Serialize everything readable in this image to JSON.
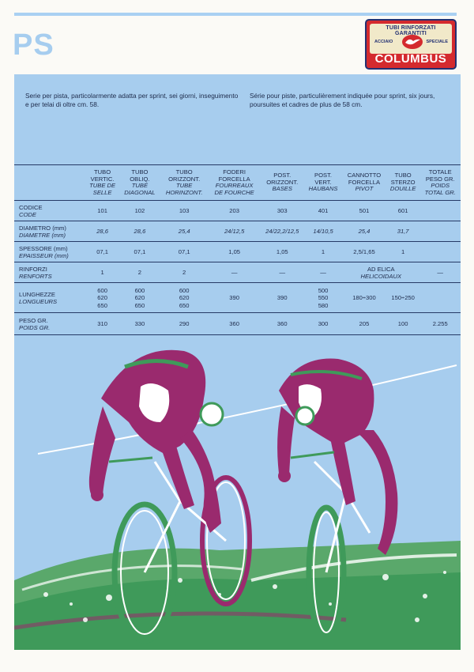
{
  "series_title": "PS",
  "logo": {
    "line1": "TUBI RINFORZATI GARANTITI",
    "left": "ACCIAIO",
    "right": "SPECIALE",
    "brand": "COLUMBUS"
  },
  "description": {
    "it": "Serie per pista, particolarmente adatta per sprint, sei giorni, inseguimento e per telai di oltre cm. 58.",
    "fr": "Série pour piste, particulièrement indiquée pour sprint, six jours, poursuites et cadres de plus de 58 cm."
  },
  "columns": [
    {
      "it": [
        "TUBO",
        "VERTIC."
      ],
      "fr": [
        "TUBE DE",
        "SELLE"
      ]
    },
    {
      "it": [
        "TUBO",
        "OBLIQ."
      ],
      "fr": [
        "TUBE",
        "DIAGONAL"
      ]
    },
    {
      "it": [
        "TUBO",
        "ORIZZONT."
      ],
      "fr": [
        "TUBE",
        "HORINZONT."
      ]
    },
    {
      "it": [
        "FODERI",
        "FORCELLA"
      ],
      "fr": [
        "FOURREAUX",
        "DE FOURCHE"
      ]
    },
    {
      "it": [
        "POST.",
        "ORIZZONT."
      ],
      "fr": [
        "BASES"
      ]
    },
    {
      "it": [
        "POST.",
        "VERT."
      ],
      "fr": [
        "HAUBANS"
      ]
    },
    {
      "it": [
        "CANNOTTO",
        "FORCELLA"
      ],
      "fr": [
        "PIVOT"
      ]
    },
    {
      "it": [
        "TUBO",
        "STERZO"
      ],
      "fr": [
        "DOUILLE"
      ]
    },
    {
      "it": [
        "TOTALE",
        "PESO GR."
      ],
      "fr": [
        "POIDS",
        "TOTAL GR."
      ]
    }
  ],
  "rows": [
    {
      "it": "CODICE",
      "fr": "CODE",
      "cells": [
        "101",
        "102",
        "103",
        "203",
        "303",
        "401",
        "501",
        "601",
        ""
      ]
    },
    {
      "it": "DIAMETRO (mm)",
      "fr": "DIAMETRE (mm)",
      "italic_cells": true,
      "cells": [
        "28,6",
        "28,6",
        "25,4",
        "24/12,5",
        "24/22,2/12,5",
        "14/10,5",
        "25,4",
        "31,7",
        ""
      ]
    },
    {
      "it": "SPESSORE (mm)",
      "fr": "EPAISSEUR (mm)",
      "cells": [
        "07,1",
        "07,1",
        "07,1",
        "1,05",
        "1,05",
        "1",
        "2,5/1,65",
        "1",
        ""
      ]
    },
    {
      "it": "RINFORZI",
      "fr": "RENFORTS",
      "cells": [
        "1",
        "2",
        "2",
        "—",
        "—",
        "—",
        "",
        "",
        "—"
      ],
      "pivot_note": [
        "AD ELICA",
        "HELICOIDAUX"
      ]
    },
    {
      "it": "LUNGHEZZE",
      "fr": "LONGUEURS",
      "cells": [
        [
          "600",
          "620",
          "650"
        ],
        [
          "600",
          "620",
          "650"
        ],
        [
          "600",
          "620",
          "650"
        ],
        "390",
        "390",
        [
          "500",
          "550",
          "580"
        ],
        "180÷300",
        "150÷250",
        ""
      ]
    },
    {
      "it": "PESO GR.",
      "fr": "POIDS GR.",
      "cells": [
        "310",
        "330",
        "290",
        "360",
        "360",
        "300",
        "205",
        "100",
        "2.255"
      ]
    }
  ],
  "colors": {
    "panel": "#a7cdee",
    "magenta": "#9a2a6e",
    "green": "#3f9a5a",
    "white": "#ffffff",
    "ink": "#1d2a4a"
  }
}
